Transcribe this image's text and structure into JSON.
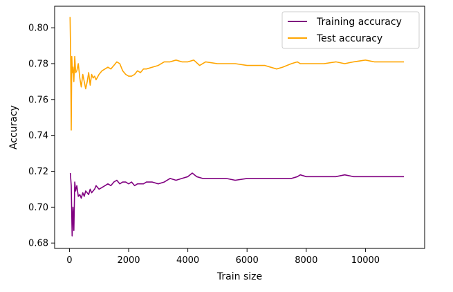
{
  "chart_data": {
    "type": "line",
    "title": "",
    "xlabel": "Train size",
    "ylabel": "Accuracy",
    "xlim": [
      -500,
      12000
    ],
    "ylim": [
      0.677,
      0.812
    ],
    "x_ticks": [
      0,
      2000,
      4000,
      6000,
      8000,
      10000
    ],
    "x_tick_labels": [
      "0",
      "2000",
      "4000",
      "6000",
      "8000",
      "10000"
    ],
    "y_ticks": [
      0.68,
      0.7,
      0.72,
      0.74,
      0.76,
      0.78,
      0.8
    ],
    "y_tick_labels": [
      "0.68",
      "0.70",
      "0.72",
      "0.74",
      "0.76",
      "0.78",
      "0.80"
    ],
    "grid": false,
    "legend": {
      "position": "top-right",
      "entries": [
        "Training accuracy",
        "Test accuracy"
      ]
    },
    "series": [
      {
        "name": "Training accuracy",
        "color": "#800080",
        "x": [
          30,
          60,
          90,
          120,
          150,
          180,
          210,
          250,
          300,
          350,
          400,
          450,
          500,
          550,
          600,
          650,
          700,
          750,
          800,
          850,
          900,
          1000,
          1100,
          1200,
          1300,
          1400,
          1500,
          1600,
          1700,
          1800,
          1900,
          2000,
          2100,
          2200,
          2300,
          2400,
          2500,
          2600,
          2800,
          3000,
          3200,
          3400,
          3600,
          3800,
          4000,
          4150,
          4300,
          4500,
          4800,
          5000,
          5300,
          5600,
          6000,
          6300,
          6600,
          6900,
          7200,
          7500,
          7700,
          7800,
          8000,
          8300,
          8600,
          9000,
          9300,
          9600,
          10000,
          10300,
          10600,
          11000,
          11300
        ],
        "y": [
          0.719,
          0.712,
          0.684,
          0.7,
          0.687,
          0.714,
          0.709,
          0.712,
          0.706,
          0.707,
          0.705,
          0.708,
          0.706,
          0.709,
          0.708,
          0.707,
          0.71,
          0.708,
          0.709,
          0.71,
          0.712,
          0.71,
          0.711,
          0.712,
          0.713,
          0.712,
          0.714,
          0.715,
          0.713,
          0.714,
          0.714,
          0.713,
          0.714,
          0.712,
          0.713,
          0.713,
          0.713,
          0.714,
          0.714,
          0.713,
          0.714,
          0.716,
          0.715,
          0.716,
          0.717,
          0.719,
          0.717,
          0.716,
          0.716,
          0.716,
          0.716,
          0.715,
          0.716,
          0.716,
          0.716,
          0.716,
          0.716,
          0.716,
          0.717,
          0.718,
          0.717,
          0.717,
          0.717,
          0.717,
          0.718,
          0.717,
          0.717,
          0.717,
          0.717,
          0.717,
          0.717
        ]
      },
      {
        "name": "Test accuracy",
        "color": "#FFA500",
        "x": [
          20,
          40,
          60,
          80,
          100,
          120,
          150,
          180,
          210,
          250,
          300,
          350,
          400,
          450,
          500,
          550,
          600,
          650,
          700,
          750,
          800,
          850,
          900,
          1000,
          1100,
          1200,
          1300,
          1400,
          1500,
          1600,
          1700,
          1800,
          1900,
          2000,
          2100,
          2200,
          2300,
          2400,
          2500,
          2600,
          2800,
          3000,
          3200,
          3400,
          3600,
          3800,
          4000,
          4200,
          4400,
          4600,
          5000,
          5300,
          5600,
          6000,
          6300,
          6600,
          7000,
          7200,
          7500,
          7700,
          7800,
          8000,
          8300,
          8600,
          9000,
          9300,
          9600,
          10000,
          10300,
          10600,
          11000,
          11300
        ],
        "y": [
          0.806,
          0.786,
          0.743,
          0.784,
          0.775,
          0.778,
          0.77,
          0.784,
          0.775,
          0.776,
          0.78,
          0.772,
          0.767,
          0.774,
          0.77,
          0.766,
          0.77,
          0.775,
          0.768,
          0.774,
          0.772,
          0.773,
          0.771,
          0.774,
          0.776,
          0.777,
          0.778,
          0.777,
          0.779,
          0.781,
          0.78,
          0.776,
          0.774,
          0.773,
          0.773,
          0.774,
          0.776,
          0.775,
          0.777,
          0.777,
          0.778,
          0.779,
          0.781,
          0.781,
          0.782,
          0.781,
          0.781,
          0.782,
          0.779,
          0.781,
          0.78,
          0.78,
          0.78,
          0.779,
          0.779,
          0.779,
          0.777,
          0.778,
          0.78,
          0.781,
          0.78,
          0.78,
          0.78,
          0.78,
          0.781,
          0.78,
          0.781,
          0.782,
          0.781,
          0.781,
          0.781,
          0.781
        ]
      }
    ]
  }
}
